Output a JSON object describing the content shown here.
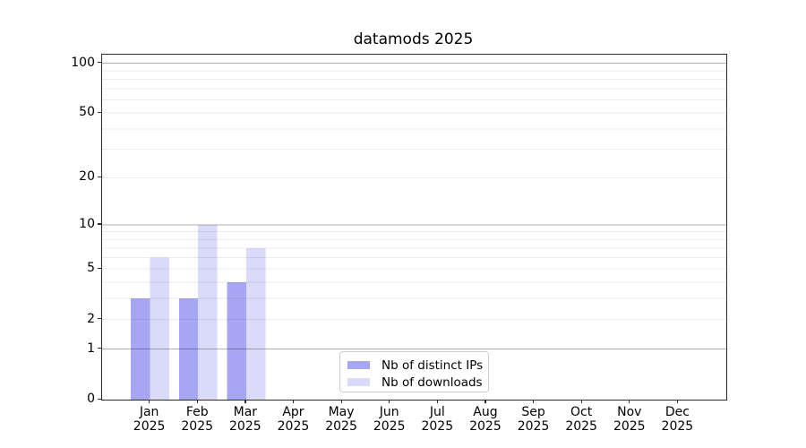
{
  "chart_data": {
    "type": "bar",
    "title": "datamods 2025",
    "categories": [
      "Jan",
      "Feb",
      "Mar",
      "Apr",
      "May",
      "Jun",
      "Jul",
      "Aug",
      "Sep",
      "Oct",
      "Nov",
      "Dec"
    ],
    "category_year": "2025",
    "series": [
      {
        "name": "Nb of distinct IPs",
        "color": "#a6a6f2",
        "values": [
          3,
          3,
          4,
          0,
          0,
          0,
          0,
          0,
          0,
          0,
          0,
          0
        ]
      },
      {
        "name": "Nb of downloads",
        "color": "#dadaf9",
        "values": [
          6,
          10,
          7,
          0,
          0,
          0,
          0,
          0,
          0,
          0,
          0,
          0
        ]
      }
    ],
    "xlabel": "",
    "ylabel": "",
    "y_scale": "log1p",
    "ylim": [
      0,
      112.6
    ],
    "y_ticks": [
      0,
      1,
      2,
      5,
      10,
      20,
      50,
      100
    ],
    "grid": true,
    "grid_major": [
      1,
      10,
      100
    ],
    "grid_minor": [
      2,
      3,
      4,
      5,
      6,
      7,
      8,
      9,
      20,
      30,
      40,
      50,
      60,
      70,
      80,
      90
    ],
    "grid_major_color": "rgba(0,0,0,0.30)",
    "grid_minor_color": "rgba(0,0,0,0.08)",
    "legend_position": "lower-center"
  }
}
